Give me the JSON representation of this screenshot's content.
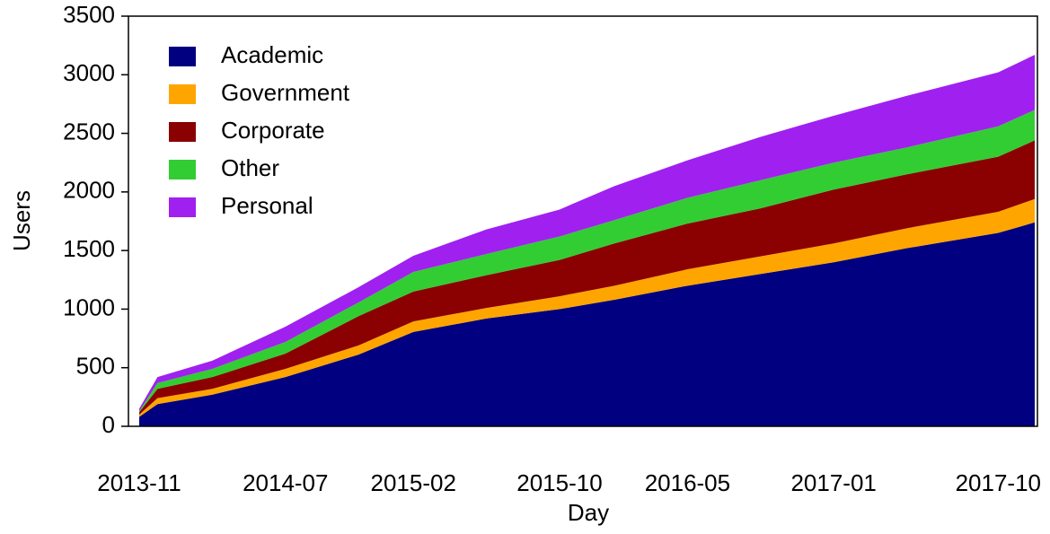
{
  "chart_data": {
    "type": "stacked_area",
    "x_label": "Day",
    "y_label": "Users",
    "x": [
      "2013-11",
      "2013-12",
      "2014-03",
      "2014-07",
      "2014-11",
      "2015-02",
      "2015-06",
      "2015-10",
      "2016-01",
      "2016-05",
      "2016-09",
      "2017-01",
      "2017-05",
      "2017-10",
      "2017-12"
    ],
    "series": [
      {
        "name": "Academic",
        "color": "#000080",
        "values": [
          80,
          190,
          270,
          420,
          612,
          805,
          920,
          1000,
          1080,
          1200,
          1300,
          1400,
          1520,
          1650,
          1740
        ]
      },
      {
        "name": "Government",
        "color": "#ffa500",
        "values": [
          20,
          50,
          50,
          70,
          78,
          90,
          90,
          110,
          120,
          140,
          150,
          160,
          170,
          180,
          200
        ]
      },
      {
        "name": "Corporate",
        "color": "#8b0000",
        "values": [
          20,
          80,
          100,
          130,
          250,
          255,
          280,
          310,
          360,
          390,
          410,
          460,
          460,
          470,
          500
        ]
      },
      {
        "name": "Other",
        "color": "#32cd32",
        "values": [
          10,
          50,
          70,
          100,
          117,
          167,
          180,
          200,
          200,
          220,
          240,
          230,
          230,
          260,
          260
        ]
      },
      {
        "name": "Personal",
        "color": "#a020f0",
        "values": [
          20,
          50,
          70,
          130,
          130,
          138,
          210,
          230,
          290,
          320,
          370,
          400,
          440,
          460,
          470
        ]
      }
    ],
    "xlim": [
      "2013-11",
      "2017-12"
    ],
    "xticks": [
      "2013-11",
      "2014-07",
      "2015-02",
      "2015-10",
      "2016-05",
      "2017-01",
      "2017-10"
    ],
    "ylim": [
      0,
      3500
    ],
    "yticks": [
      0,
      500,
      1000,
      1500,
      2000,
      2500,
      3000,
      3500
    ],
    "legend": "upper left"
  }
}
